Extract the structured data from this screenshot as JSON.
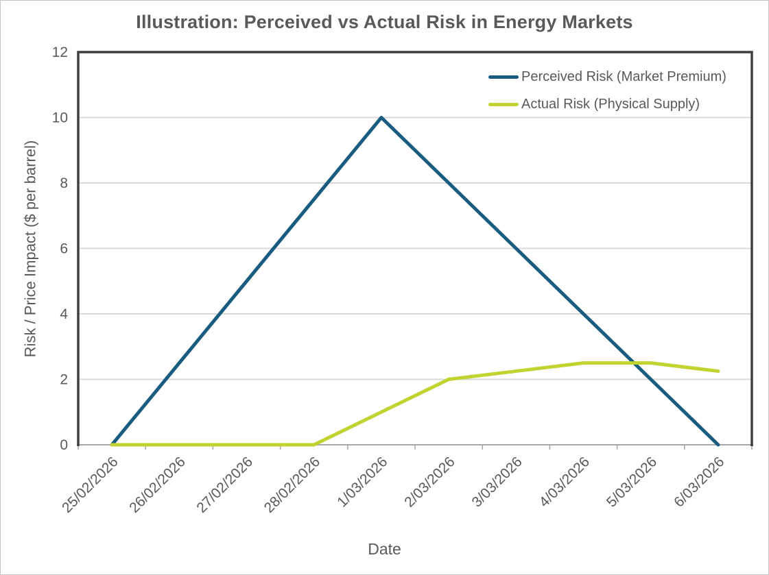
{
  "chart_data": {
    "type": "line",
    "title": "Illustration: Perceived vs Actual Risk in Energy Markets",
    "xlabel": "Date",
    "ylabel": "Risk / Price Impact ($ per barrel)",
    "categories": [
      "25/02/2026",
      "26/02/2026",
      "27/02/2026",
      "28/02/2026",
      "1/03/2026",
      "2/03/2026",
      "3/03/2026",
      "4/03/2026",
      "5/03/2026",
      "6/03/2026"
    ],
    "series": [
      {
        "name": "Perceived Risk (Market Premium)",
        "color": "#195c80",
        "values": [
          0,
          2.5,
          5,
          7.5,
          10,
          8,
          6,
          4,
          2,
          0
        ]
      },
      {
        "name": "Actual Risk (Physical Supply)",
        "color": "#c0d330",
        "values": [
          0,
          0,
          0,
          0,
          1,
          2,
          2.25,
          2.5,
          2.5,
          2.25
        ]
      }
    ],
    "ylim": [
      0,
      12
    ],
    "yticks": [
      0,
      2,
      4,
      6,
      8,
      10,
      12
    ],
    "grid": "horizontal",
    "legend_position": "top-right-inside"
  },
  "colors": {
    "text": "#595959",
    "gridline": "#d9d9d9",
    "plot_border": "#3f3f3f",
    "axis_line": "#a6a6a6",
    "canvas_border": "#c5c5c5",
    "background": "#ffffff"
  }
}
